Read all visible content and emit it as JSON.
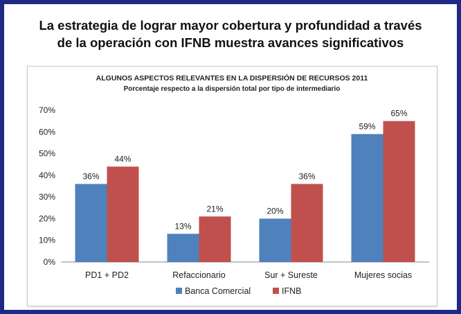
{
  "headline": {
    "line1": "La estrategia de lograr mayor cobertura y profundidad a través",
    "line2": "de la operación con IFNB muestra avances significativos"
  },
  "chart_data": {
    "type": "bar",
    "title": "ALGUNOS ASPECTOS RELEVANTES EN LA DISPERSIÓN DE RECURSOS 2011",
    "subtitle": "Porcentaje respecto a la dispersión total por tipo de intermediario",
    "categories": [
      "PD1 + PD2",
      "Refaccionario",
      "Sur + Sureste",
      "Mujeres socias"
    ],
    "series": [
      {
        "name": "Banca Comercial",
        "color": "#4f81bd",
        "values": [
          36,
          13,
          20,
          59
        ],
        "labels": [
          "36%",
          "13%",
          "20%",
          "59%"
        ]
      },
      {
        "name": "IFNB",
        "color": "#c0504d",
        "values": [
          44,
          21,
          36,
          65
        ],
        "labels": [
          "44%",
          "21%",
          "36%",
          "65%"
        ]
      }
    ],
    "ylim": [
      0,
      70
    ],
    "yticks": [
      "0%",
      "10%",
      "20%",
      "30%",
      "40%",
      "50%",
      "60%",
      "70%"
    ],
    "grid": false,
    "legend_position": "bottom"
  }
}
